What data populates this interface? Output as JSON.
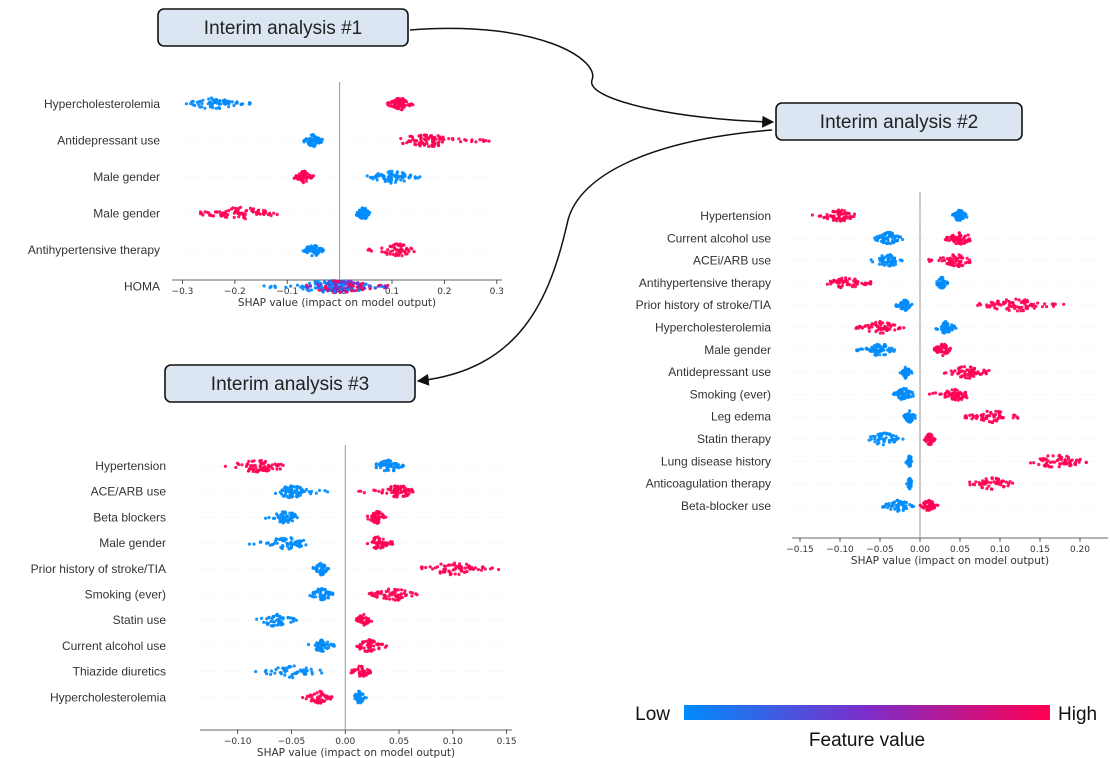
{
  "annotations": {
    "interim_1": "Interim analysis #1",
    "interim_2": "Interim analysis #2",
    "interim_3": "Interim analysis #3"
  },
  "legend": {
    "low_label": "Low",
    "high_label": "High",
    "title": "Feature value",
    "low_color": "#008bfb",
    "mid_color": "#7d2dc9",
    "high_color": "#ff0052"
  },
  "chart_data": [
    {
      "type": "scatter",
      "name": "Interim analysis #1",
      "xlabel": "SHAP value (impact on model output)",
      "xlim": [
        -0.32,
        0.31
      ],
      "xticks": [
        -0.3,
        -0.2,
        -0.1,
        0.0,
        0.1,
        0.2,
        0.3
      ],
      "tick_labels": [
        "−0.3",
        "−0.2",
        "−0.1",
        "0.0",
        "0.1",
        "0.2",
        "0.3"
      ],
      "features": [
        {
          "name": "Hypercholesterolemia",
          "clusters": [
            {
              "color": "low",
              "min": -0.3,
              "max": -0.17,
              "center": -0.24,
              "n": 70
            },
            {
              "color": "high",
              "min": 0.09,
              "max": 0.14,
              "center": 0.115,
              "n": 70
            }
          ]
        },
        {
          "name": "Antidepressant use",
          "clusters": [
            {
              "color": "low",
              "min": -0.07,
              "max": -0.03,
              "center": -0.05,
              "n": 60
            },
            {
              "color": "high",
              "min": 0.11,
              "max": 0.29,
              "center": 0.17,
              "n": 90
            }
          ]
        },
        {
          "name": "Male gender",
          "clusters": [
            {
              "color": "high",
              "min": -0.09,
              "max": -0.05,
              "center": -0.07,
              "n": 60
            },
            {
              "color": "low",
              "min": 0.05,
              "max": 0.16,
              "center": 0.1,
              "n": 70
            }
          ]
        },
        {
          "name": "Male gender",
          "clusters": [
            {
              "color": "high",
              "min": -0.27,
              "max": -0.11,
              "center": -0.19,
              "n": 80
            },
            {
              "color": "low",
              "min": 0.03,
              "max": 0.06,
              "center": 0.045,
              "n": 60
            }
          ]
        },
        {
          "name": "Antihypertensive therapy",
          "clusters": [
            {
              "color": "low",
              "min": -0.07,
              "max": -0.03,
              "center": -0.05,
              "n": 60
            },
            {
              "color": "high",
              "min": 0.05,
              "max": 0.15,
              "center": 0.11,
              "n": 60
            }
          ]
        },
        {
          "name": "HOMA",
          "clusters": [
            {
              "color": "low",
              "min": -0.15,
              "max": 0.05,
              "center": -0.02,
              "n": 80
            },
            {
              "color": "mixed",
              "min": -0.07,
              "max": 0.1,
              "center": 0.0,
              "n": 160
            }
          ]
        }
      ]
    },
    {
      "type": "scatter",
      "name": "Interim analysis #2",
      "xlabel": "SHAP value (impact on model output)",
      "xlim": [
        -0.16,
        0.235
      ],
      "xticks": [
        -0.15,
        -0.1,
        -0.05,
        0.0,
        0.05,
        0.1,
        0.15,
        0.2
      ],
      "tick_labels": [
        "−0.15",
        "−0.10",
        "−0.05",
        "0.00",
        "0.05",
        "0.10",
        "0.15",
        "0.20"
      ],
      "features": [
        {
          "name": "Hypertension",
          "clusters": [
            {
              "color": "high",
              "min": -0.14,
              "max": -0.08,
              "center": -0.1,
              "n": 60
            },
            {
              "color": "low",
              "min": 0.04,
              "max": 0.06,
              "center": 0.05,
              "n": 60
            }
          ]
        },
        {
          "name": "Current alcohol use",
          "clusters": [
            {
              "color": "low",
              "min": -0.06,
              "max": -0.02,
              "center": -0.04,
              "n": 60
            },
            {
              "color": "high",
              "min": 0.03,
              "max": 0.07,
              "center": 0.05,
              "n": 60
            }
          ]
        },
        {
          "name": "ACEi/ARB use",
          "clusters": [
            {
              "color": "low",
              "min": -0.07,
              "max": -0.02,
              "center": -0.04,
              "n": 60
            },
            {
              "color": "high",
              "min": 0.01,
              "max": 0.07,
              "center": 0.045,
              "n": 60
            }
          ]
        },
        {
          "name": "Antihypertensive therapy",
          "clusters": [
            {
              "color": "high",
              "min": -0.12,
              "max": -0.06,
              "center": -0.09,
              "n": 60
            },
            {
              "color": "low",
              "min": 0.02,
              "max": 0.035,
              "center": 0.027,
              "n": 40
            }
          ]
        },
        {
          "name": "Prior history of stroke/TIA",
          "clusters": [
            {
              "color": "low",
              "min": -0.03,
              "max": -0.01,
              "center": -0.02,
              "n": 50
            },
            {
              "color": "high",
              "min": 0.07,
              "max": 0.18,
              "center": 0.12,
              "n": 80
            }
          ]
        },
        {
          "name": "Hypercholesterolemia",
          "clusters": [
            {
              "color": "high",
              "min": -0.08,
              "max": -0.02,
              "center": -0.05,
              "n": 60
            },
            {
              "color": "low",
              "min": 0.02,
              "max": 0.045,
              "center": 0.032,
              "n": 50
            }
          ]
        },
        {
          "name": "Male gender",
          "clusters": [
            {
              "color": "low",
              "min": -0.08,
              "max": -0.03,
              "center": -0.05,
              "n": 60
            },
            {
              "color": "high",
              "min": 0.015,
              "max": 0.04,
              "center": 0.028,
              "n": 50
            }
          ]
        },
        {
          "name": "Antidepressant use",
          "clusters": [
            {
              "color": "low",
              "min": -0.025,
              "max": -0.01,
              "center": -0.018,
              "n": 40
            },
            {
              "color": "high",
              "min": 0.03,
              "max": 0.09,
              "center": 0.06,
              "n": 60
            }
          ]
        },
        {
          "name": "Smoking (ever)",
          "clusters": [
            {
              "color": "low",
              "min": -0.035,
              "max": -0.005,
              "center": -0.02,
              "n": 60
            },
            {
              "color": "high",
              "min": 0.01,
              "max": 0.065,
              "center": 0.045,
              "n": 60
            }
          ]
        },
        {
          "name": "Leg edema",
          "clusters": [
            {
              "color": "low",
              "min": -0.02,
              "max": -0.005,
              "center": -0.013,
              "n": 40
            },
            {
              "color": "high",
              "min": 0.055,
              "max": 0.125,
              "center": 0.09,
              "n": 60
            }
          ]
        },
        {
          "name": "Statin therapy",
          "clusters": [
            {
              "color": "low",
              "min": -0.075,
              "max": -0.02,
              "center": -0.045,
              "n": 50
            },
            {
              "color": "high",
              "min": 0.005,
              "max": 0.02,
              "center": 0.012,
              "n": 40
            }
          ]
        },
        {
          "name": "Lung disease history",
          "clusters": [
            {
              "color": "low",
              "min": -0.018,
              "max": -0.01,
              "center": -0.013,
              "n": 30
            },
            {
              "color": "high",
              "min": 0.125,
              "max": 0.23,
              "center": 0.17,
              "n": 60
            }
          ]
        },
        {
          "name": "Anticoagulation therapy",
          "clusters": [
            {
              "color": "low",
              "min": -0.017,
              "max": -0.01,
              "center": -0.013,
              "n": 30
            },
            {
              "color": "high",
              "min": 0.06,
              "max": 0.12,
              "center": 0.09,
              "n": 50
            }
          ]
        },
        {
          "name": "Beta-blocker use",
          "clusters": [
            {
              "color": "low",
              "min": -0.05,
              "max": -0.005,
              "center": -0.025,
              "n": 50
            },
            {
              "color": "high",
              "min": 0.0,
              "max": 0.025,
              "center": 0.01,
              "n": 50
            }
          ]
        }
      ]
    },
    {
      "type": "scatter",
      "name": "Interim analysis #3",
      "xlabel": "SHAP value (impact on model output)",
      "xlim": [
        -0.135,
        0.155
      ],
      "xticks": [
        -0.1,
        -0.05,
        0.0,
        0.05,
        0.1,
        0.15
      ],
      "tick_labels": [
        "−0.10",
        "−0.05",
        "0.00",
        "0.05",
        "0.10",
        "0.15"
      ],
      "features": [
        {
          "name": "Hypertension",
          "clusters": [
            {
              "color": "high",
              "min": -0.125,
              "max": -0.055,
              "center": -0.08,
              "n": 70
            },
            {
              "color": "low",
              "min": 0.025,
              "max": 0.055,
              "center": 0.04,
              "n": 60
            }
          ]
        },
        {
          "name": "ACE/ARB use",
          "clusters": [
            {
              "color": "low",
              "min": -0.065,
              "max": -0.015,
              "center": -0.05,
              "n": 70
            },
            {
              "color": "high",
              "min": 0.01,
              "max": 0.065,
              "center": 0.05,
              "n": 70
            }
          ]
        },
        {
          "name": "Beta blockers",
          "clusters": [
            {
              "color": "low",
              "min": -0.075,
              "max": -0.04,
              "center": -0.055,
              "n": 50
            },
            {
              "color": "high",
              "min": 0.02,
              "max": 0.04,
              "center": 0.03,
              "n": 50
            }
          ]
        },
        {
          "name": "Male gender",
          "clusters": [
            {
              "color": "low",
              "min": -0.09,
              "max": -0.035,
              "center": -0.055,
              "n": 60
            },
            {
              "color": "high",
              "min": 0.02,
              "max": 0.045,
              "center": 0.03,
              "n": 50
            }
          ]
        },
        {
          "name": "Prior history of stroke/TIA",
          "clusters": [
            {
              "color": "low",
              "min": -0.03,
              "max": -0.015,
              "center": -0.022,
              "n": 40
            },
            {
              "color": "high",
              "min": 0.07,
              "max": 0.145,
              "center": 0.1,
              "n": 70
            }
          ]
        },
        {
          "name": "Smoking (ever)",
          "clusters": [
            {
              "color": "low",
              "min": -0.035,
              "max": -0.01,
              "center": -0.022,
              "n": 50
            },
            {
              "color": "high",
              "min": 0.02,
              "max": 0.07,
              "center": 0.045,
              "n": 60
            }
          ]
        },
        {
          "name": "Statin use",
          "clusters": [
            {
              "color": "low",
              "min": -0.085,
              "max": -0.045,
              "center": -0.065,
              "n": 50
            },
            {
              "color": "high",
              "min": 0.01,
              "max": 0.025,
              "center": 0.017,
              "n": 40
            }
          ]
        },
        {
          "name": "Current alcohol use",
          "clusters": [
            {
              "color": "low",
              "min": -0.035,
              "max": -0.01,
              "center": -0.022,
              "n": 50
            },
            {
              "color": "high",
              "min": 0.01,
              "max": 0.04,
              "center": 0.022,
              "n": 50
            }
          ]
        },
        {
          "name": "Thiazide diuretics",
          "clusters": [
            {
              "color": "low",
              "min": -0.085,
              "max": -0.02,
              "center": -0.05,
              "n": 50
            },
            {
              "color": "high",
              "min": 0.005,
              "max": 0.025,
              "center": 0.015,
              "n": 40
            }
          ]
        },
        {
          "name": "Hypercholesterolemia",
          "clusters": [
            {
              "color": "high",
              "min": -0.04,
              "max": -0.01,
              "center": -0.025,
              "n": 50
            },
            {
              "color": "low",
              "min": 0.008,
              "max": 0.02,
              "center": 0.013,
              "n": 40
            }
          ]
        }
      ]
    }
  ]
}
